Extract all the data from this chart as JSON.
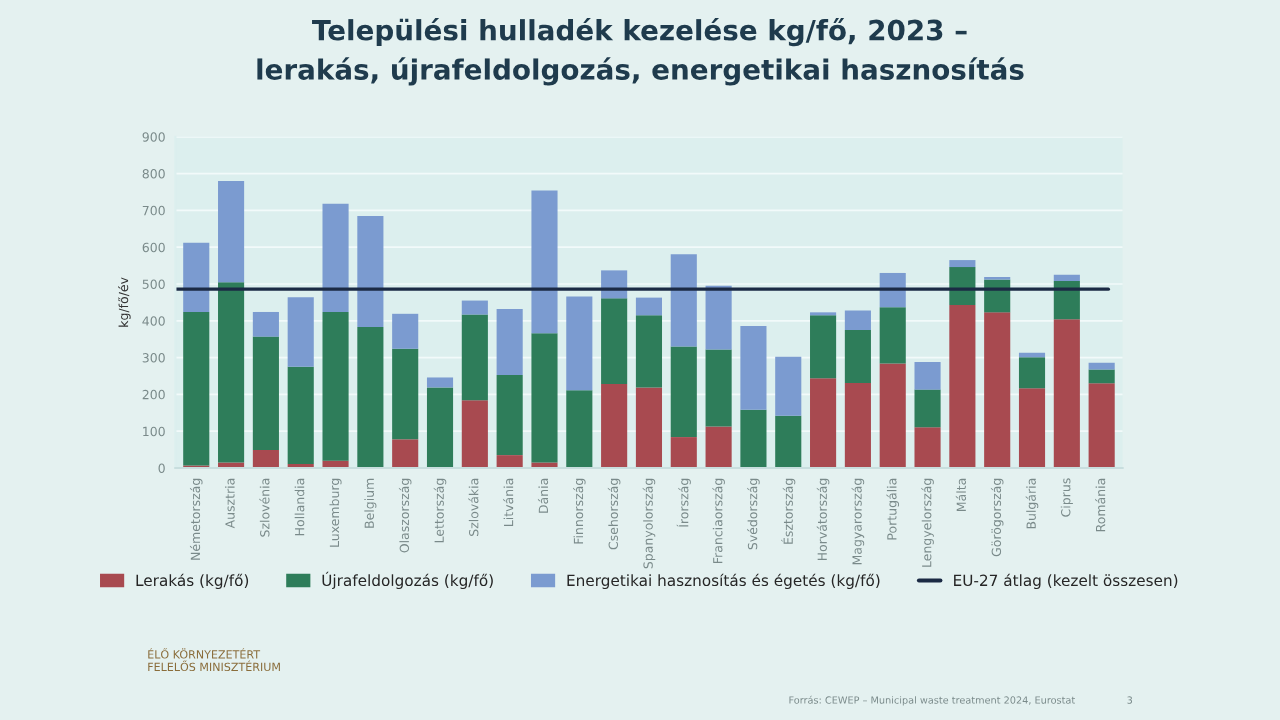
{
  "chart_data": {
    "type": "bar",
    "stacked": true,
    "title": "Települési hulladék kezelése kg/fő, 2023 –\nlerakás, újrafeldolgozás, energetikai hasznosítás",
    "ylabel": "kg/fő/év",
    "categories": [
      "Németország",
      "Ausztria",
      "Szlovénia",
      "Hollandia",
      "Luxemburg",
      "Belgium",
      "Olaszország",
      "Lettország",
      "Szlovákia",
      "Litvánia",
      "Dánia",
      "Finnország",
      "Csehország",
      "Spanyolország",
      "Írország",
      "Franciaország",
      "Svédország",
      "Észtország",
      "Horvátország",
      "Magyarország",
      "Portugália",
      "Lengyelország",
      "Málta",
      "Görögország",
      "Bulgária",
      "Ciprus",
      "Románia"
    ],
    "series": [
      {
        "name": "Lerakás (kg/fő)",
        "color": "#a84a50",
        "values": [
          7,
          15,
          49,
          11,
          20,
          0,
          78,
          0,
          184,
          35,
          15,
          0,
          228,
          219,
          84,
          113,
          0,
          0,
          244,
          231,
          284,
          111,
          443,
          423,
          217,
          404,
          230
        ]
      },
      {
        "name": "Újrafeldolgozás (kg/fő)",
        "color": "#2e7d5a",
        "values": [
          417,
          490,
          308,
          264,
          404,
          383,
          246,
          219,
          233,
          218,
          351,
          211,
          233,
          196,
          246,
          209,
          158,
          142,
          171,
          144,
          153,
          102,
          103,
          89,
          84,
          104,
          38
        ]
      },
      {
        "name": "Energetikai hasznosítás és égetés (kg/fő)",
        "color": "#7b9bd0",
        "values": [
          188,
          275,
          67,
          189,
          294,
          302,
          95,
          27,
          38,
          179,
          388,
          255,
          76,
          48,
          251,
          173,
          228,
          160,
          8,
          53,
          93,
          75,
          19,
          7,
          12,
          17,
          18
        ]
      }
    ],
    "ref_lines": [
      {
        "axis": "y",
        "value": 486,
        "label": "EU-27 átlag (kezelt összesen)",
        "color": "#1b2a44"
      }
    ],
    "ylim": [
      0,
      900
    ],
    "yticks": [
      0,
      100,
      200,
      300,
      400,
      500,
      600,
      700,
      800,
      900
    ],
    "grid": "y",
    "legend": "bottom",
    "annotations": [
      "ÉLŐ KÖRNYEZETÉRT\nFELELŐS MINISZTÉRIUM",
      "Forrás: CEWEP – Municipal waste treatment 2024, Eurostat",
      "3"
    ]
  }
}
